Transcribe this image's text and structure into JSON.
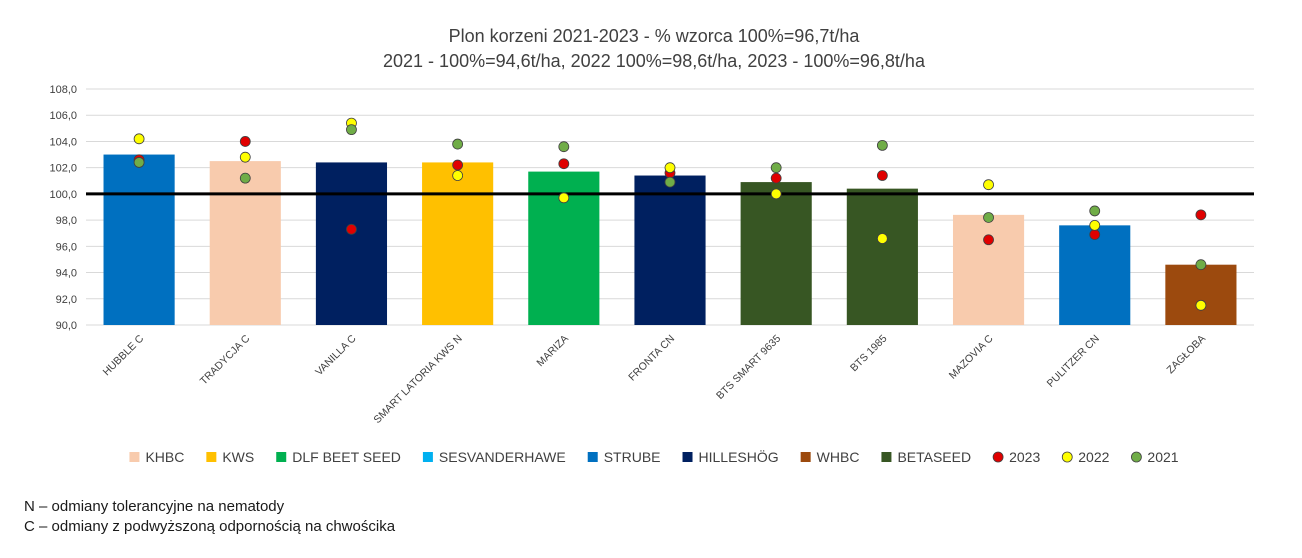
{
  "chart_data": {
    "type": "bar",
    "title_lines": [
      "Plon korzeni 2021-2023 - % wzorca 100%=96,7t/ha",
      "2021 - 100%=94,6t/ha, 2022 100%=98,6t/ha, 2023 - 100%=96,8t/ha"
    ],
    "categories": [
      "HUBBLE C",
      "TRADYCJA C",
      "VANILLA C",
      "SMART LATORIA KWS N",
      "MARIZA",
      "FRONTA CN",
      "BTS SMART 9635",
      "BTS 1985",
      "MAZOVIA C",
      "PULITZER CN",
      "ZAGŁOBA"
    ],
    "values": [
      103.0,
      102.5,
      102.4,
      102.4,
      101.7,
      101.4,
      100.9,
      100.4,
      98.4,
      97.6,
      94.6
    ],
    "bar_colors": [
      "#0070c0",
      "#f8cbad",
      "#002060",
      "#ffc000",
      "#00b050",
      "#002060",
      "#375623",
      "#375623",
      "#f8cbad",
      "#0070c0",
      "#9c4a0e"
    ],
    "series": [
      {
        "name": "2023",
        "color": "#e00000",
        "values": [
          102.6,
          104.0,
          97.3,
          102.2,
          102.3,
          101.6,
          101.2,
          101.4,
          96.5,
          96.9,
          98.4
        ]
      },
      {
        "name": "2022",
        "color": "#ffff00",
        "values": [
          104.2,
          102.8,
          105.4,
          101.4,
          99.7,
          102.0,
          100.0,
          96.6,
          100.7,
          97.6,
          91.5
        ]
      },
      {
        "name": "2021",
        "color": "#70ad47",
        "values": [
          102.4,
          101.2,
          104.9,
          103.8,
          103.6,
          100.9,
          102.0,
          103.7,
          98.2,
          98.7,
          94.6
        ]
      }
    ],
    "y_ticks": [
      "90,0",
      "92,0",
      "94,0",
      "96,0",
      "98,0",
      "100,0",
      "102,0",
      "104,0",
      "106,0",
      "108,0"
    ],
    "ylim": [
      90,
      108
    ],
    "reference_line": 100,
    "grid": true,
    "legend_position": "bottom",
    "legend": [
      {
        "label": "KHBC",
        "color": "#f8cbad",
        "kind": "square"
      },
      {
        "label": "KWS",
        "color": "#ffc000",
        "kind": "square"
      },
      {
        "label": "DLF BEET SEED",
        "color": "#00b050",
        "kind": "square"
      },
      {
        "label": "SESVANDERHAWE",
        "color": "#00b0f0",
        "kind": "square"
      },
      {
        "label": "STRUBE",
        "color": "#0070c0",
        "kind": "square"
      },
      {
        "label": "HILLESHÖG",
        "color": "#002060",
        "kind": "square"
      },
      {
        "label": "WHBC",
        "color": "#9c4a0e",
        "kind": "square"
      },
      {
        "label": "BETASEED",
        "color": "#375623",
        "kind": "square"
      },
      {
        "label": "2023",
        "color": "#e00000",
        "kind": "dot"
      },
      {
        "label": "2022",
        "color": "#ffff00",
        "kind": "dot"
      },
      {
        "label": "2021",
        "color": "#70ad47",
        "kind": "dot"
      }
    ]
  },
  "notes": [
    "N – odmiany tolerancyjne na nematody",
    "C – odmiany z podwyższoną odpornością na chwościka"
  ]
}
